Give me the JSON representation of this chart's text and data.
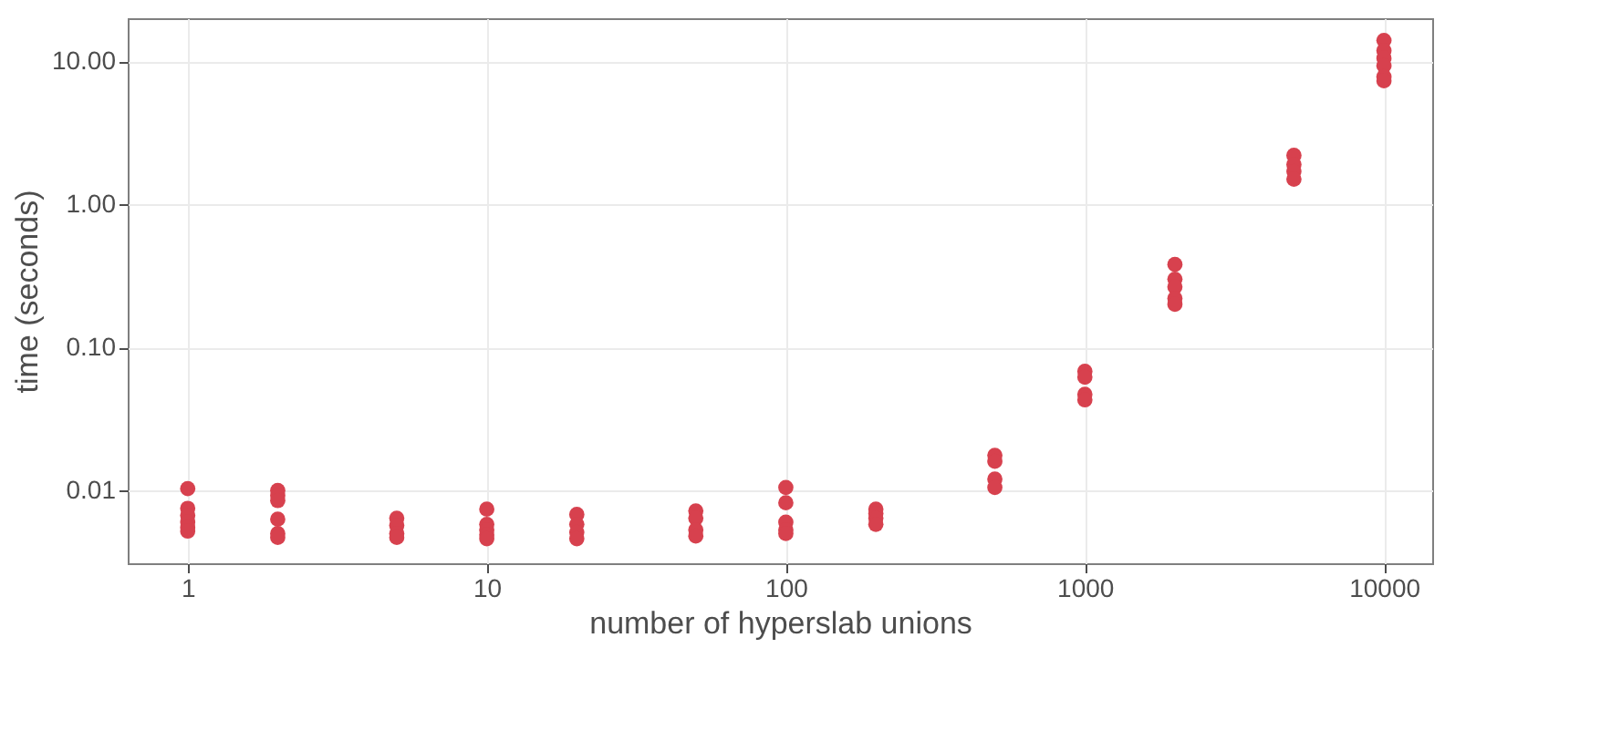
{
  "chart_data": {
    "type": "scatter",
    "xlabel": "number of hyperslab unions",
    "ylabel": "time (seconds)",
    "series": [
      {
        "color": "#d7414e",
        "x": [
          1,
          1,
          1,
          1,
          1,
          1,
          2,
          2,
          2,
          2,
          2,
          2,
          5,
          5,
          5,
          5,
          10,
          10,
          10,
          10,
          10,
          20,
          20,
          20,
          20,
          50,
          50,
          50,
          50,
          100,
          100,
          100,
          100,
          100,
          200,
          200,
          200,
          200,
          500,
          500,
          500,
          500,
          1000,
          1000,
          1000,
          1000,
          2000,
          2000,
          2000,
          2000,
          2000,
          5000,
          5000,
          5000,
          5000,
          10000,
          10000,
          10000,
          10000,
          10000,
          10000
        ],
        "values": [
          0.0103,
          0.0075,
          0.0067,
          0.006,
          0.0055,
          0.0052,
          0.01,
          0.0092,
          0.0085,
          0.0063,
          0.005,
          0.0047,
          0.0064,
          0.0057,
          0.005,
          0.0047,
          0.0074,
          0.0058,
          0.0053,
          0.0049,
          0.0046,
          0.0068,
          0.0058,
          0.0051,
          0.0046,
          0.0072,
          0.0064,
          0.0053,
          0.0048,
          0.0105,
          0.0082,
          0.006,
          0.0053,
          0.005,
          0.0074,
          0.0069,
          0.0064,
          0.0058,
          0.0176,
          0.016,
          0.012,
          0.0105,
          0.068,
          0.062,
          0.047,
          0.043,
          0.38,
          0.3,
          0.265,
          0.22,
          0.2,
          2.2,
          1.9,
          1.7,
          1.5,
          14,
          11.9,
          10.5,
          9.3,
          7.8,
          7.3
        ]
      }
    ],
    "log": "xy",
    "xlim": [
      0.63,
      14500
    ],
    "ylim": [
      0.0031,
      20
    ],
    "xticks": [
      1,
      10,
      100,
      1000,
      10000
    ],
    "yticks": [
      {
        "value": 0.01,
        "label": "0.01"
      },
      {
        "value": 0.1,
        "label": "0.10"
      },
      {
        "value": 1,
        "label": "1.00"
      },
      {
        "value": 10,
        "label": "10.00"
      }
    ],
    "grid": true,
    "marker": "circle",
    "legend": false
  }
}
